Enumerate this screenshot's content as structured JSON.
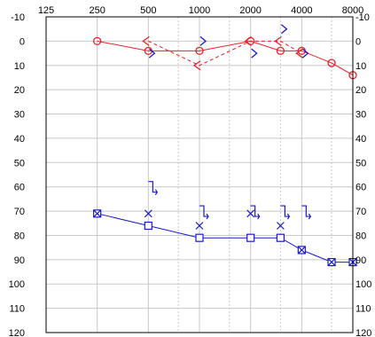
{
  "chart_data": {
    "type": "scatter",
    "title": "",
    "xlabel": "",
    "ylabel": "",
    "x_scale": "log2",
    "xlim": [
      125,
      8000
    ],
    "ylim": [
      -10,
      120
    ],
    "y_inverted": true,
    "x_ticks": [
      {
        "value": 125,
        "label": "125"
      },
      {
        "value": 250,
        "label": "250"
      },
      {
        "value": 500,
        "label": "500"
      },
      {
        "value": 1000,
        "label": "1000"
      },
      {
        "value": 2000,
        "label": "2000"
      },
      {
        "value": 4000,
        "label": "4000"
      },
      {
        "value": 8000,
        "label": "8000"
      }
    ],
    "x_minor_ticks": [
      750,
      1500,
      3000,
      6000
    ],
    "y_ticks": [
      "-10",
      "0",
      "10",
      "20",
      "30",
      "40",
      "50",
      "60",
      "70",
      "80",
      "90",
      "100",
      "110",
      "120"
    ],
    "grid": true,
    "colors": {
      "red": "#e8202a",
      "blue": "#1a1acc",
      "grid": "#c8c8c8",
      "grid_minor": "#c8c8c8",
      "border": "#000000"
    },
    "series": [
      {
        "marker": "circle",
        "color": "red",
        "line": "solid",
        "points": [
          [
            250,
            0
          ],
          [
            500,
            4
          ],
          [
            1000,
            4
          ],
          [
            2000,
            0
          ],
          [
            3000,
            4
          ],
          [
            4000,
            4
          ],
          [
            6000,
            9
          ],
          [
            8000,
            14
          ]
        ]
      },
      {
        "marker": "bracket-left",
        "color": "red",
        "line": "dashed",
        "points": [
          [
            500,
            0
          ],
          [
            1000,
            10
          ],
          [
            2000,
            0
          ],
          [
            3000,
            0
          ],
          [
            4000,
            5
          ]
        ]
      },
      {
        "marker": "bracket-right",
        "color": "blue",
        "line": "none",
        "points": [
          [
            500,
            5
          ],
          [
            1000,
            0
          ],
          [
            2000,
            5
          ],
          [
            3000,
            -5
          ],
          [
            4000,
            5
          ]
        ]
      },
      {
        "marker": "square",
        "color": "blue",
        "line": "solid",
        "points": [
          [
            250,
            71
          ],
          [
            500,
            76
          ],
          [
            1000,
            81
          ],
          [
            2000,
            81
          ],
          [
            3000,
            81
          ],
          [
            4000,
            86
          ],
          [
            6000,
            91
          ],
          [
            8000,
            91
          ]
        ]
      },
      {
        "marker": "cross",
        "color": "blue",
        "line": "none",
        "points": [
          [
            250,
            71
          ],
          [
            500,
            71
          ],
          [
            1000,
            76
          ],
          [
            2000,
            71
          ],
          [
            3000,
            76
          ],
          [
            4000,
            86
          ],
          [
            6000,
            91
          ],
          [
            8000,
            91
          ]
        ]
      },
      {
        "marker": "bracket-right-arrow",
        "color": "blue",
        "line": "none",
        "points": [
          [
            500,
            60
          ],
          [
            1000,
            70
          ],
          [
            2000,
            70
          ],
          [
            3000,
            70
          ],
          [
            4000,
            70
          ]
        ]
      }
    ]
  }
}
